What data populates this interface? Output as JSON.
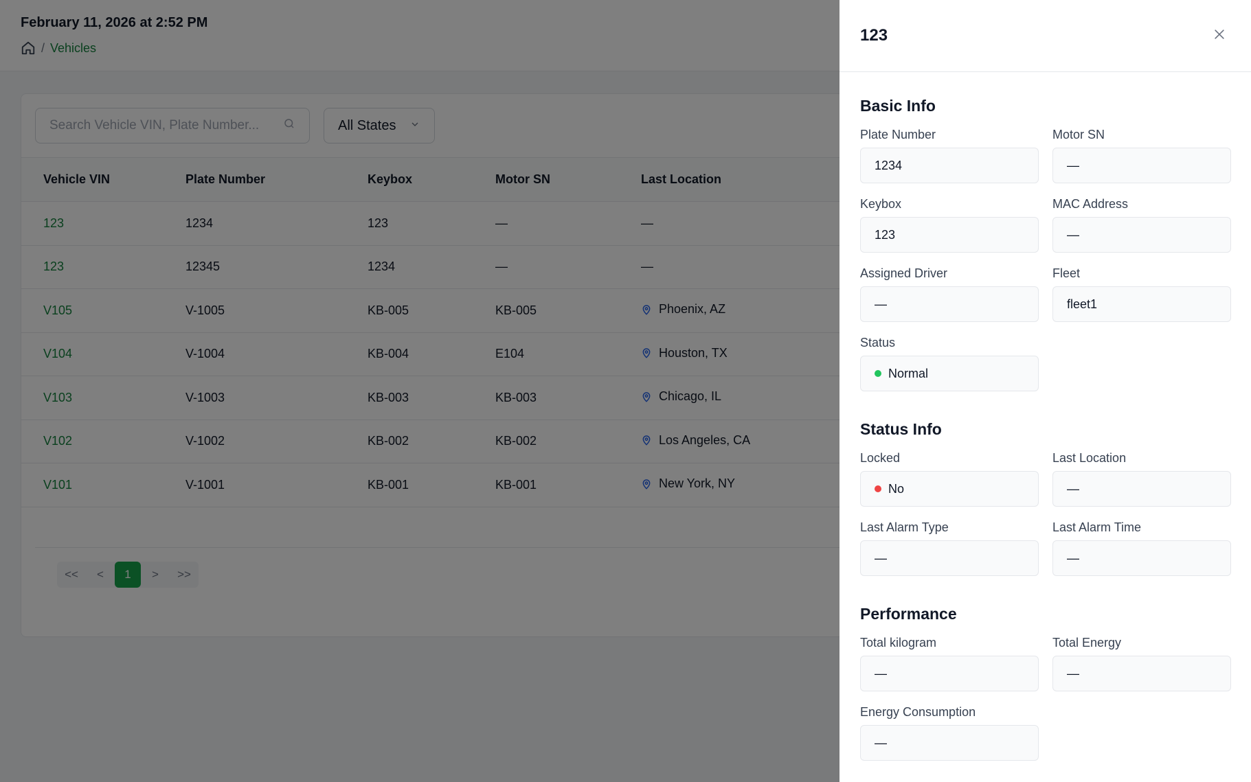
{
  "header": {
    "datetime": "February 11, 2026 at 2:52 PM",
    "breadcrumb": {
      "separator": "/",
      "current": "Vehicles"
    }
  },
  "filters": {
    "search_placeholder": "Search Vehicle VIN, Plate Number...",
    "state_select": "All States"
  },
  "table": {
    "columns": [
      "Vehicle VIN",
      "Plate Number",
      "Keybox",
      "Motor SN",
      "Last Location"
    ],
    "rows": [
      {
        "vin": "123",
        "plate": "1234",
        "keybox": "123",
        "motor": "—",
        "location": "—",
        "has_pin": false
      },
      {
        "vin": "123",
        "plate": "12345",
        "keybox": "1234",
        "motor": "—",
        "location": "—",
        "has_pin": false
      },
      {
        "vin": "V105",
        "plate": "V-1005",
        "keybox": "KB-005",
        "motor": "KB-005",
        "location": "Phoenix, AZ",
        "has_pin": true
      },
      {
        "vin": "V104",
        "plate": "V-1004",
        "keybox": "KB-004",
        "motor": "E104",
        "location": "Houston, TX",
        "has_pin": true
      },
      {
        "vin": "V103",
        "plate": "V-1003",
        "keybox": "KB-003",
        "motor": "KB-003",
        "location": "Chicago, IL",
        "has_pin": true
      },
      {
        "vin": "V102",
        "plate": "V-1002",
        "keybox": "KB-002",
        "motor": "KB-002",
        "location": "Los Angeles, CA",
        "has_pin": true
      },
      {
        "vin": "V101",
        "plate": "V-1001",
        "keybox": "KB-001",
        "motor": "KB-001",
        "location": "New York, NY",
        "has_pin": true
      }
    ]
  },
  "pagination": {
    "first": "<<",
    "prev": "<",
    "current": "1",
    "next": ">",
    "last": ">>"
  },
  "drawer": {
    "title": "123",
    "sections": {
      "basic": {
        "title": "Basic Info",
        "plate_label": "Plate Number",
        "plate_value": "1234",
        "motor_label": "Motor SN",
        "motor_value": "—",
        "keybox_label": "Keybox",
        "keybox_value": "123",
        "mac_label": "MAC Address",
        "mac_value": "—",
        "driver_label": "Assigned Driver",
        "driver_value": "—",
        "fleet_label": "Fleet",
        "fleet_value": "fleet1",
        "status_label": "Status",
        "status_value": "Normal"
      },
      "status": {
        "title": "Status Info",
        "locked_label": "Locked",
        "locked_value": "No",
        "location_label": "Last Location",
        "location_value": "—",
        "alarm_type_label": "Last Alarm Type",
        "alarm_type_value": "—",
        "alarm_time_label": "Last Alarm Time",
        "alarm_time_value": "—"
      },
      "performance": {
        "title": "Performance",
        "kg_label": "Total kilogram",
        "kg_value": "—",
        "energy_label": "Total Energy",
        "energy_value": "—",
        "consumption_label": "Energy Consumption",
        "consumption_value": "—"
      }
    }
  },
  "colors": {
    "accent": "#15803d",
    "active_page": "#16a34a",
    "status_normal": "#22c55e",
    "status_no": "#ef4444",
    "pin": "#2563eb"
  }
}
